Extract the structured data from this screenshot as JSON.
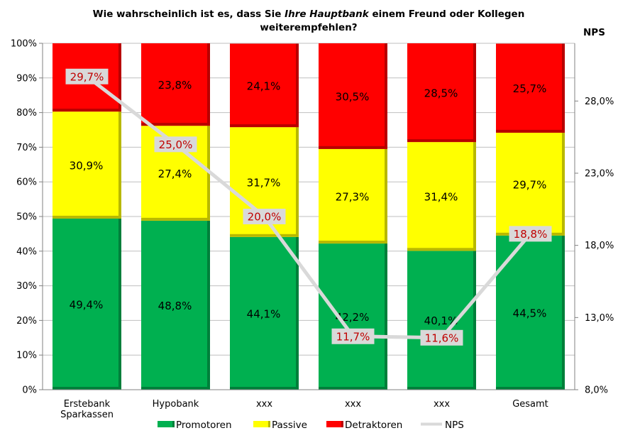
{
  "chart_data": {
    "type": "bar",
    "title_line1_prefix": "Wie wahrscheinlich ist es, dass Sie ",
    "title_line1_italic": "Ihre Hauptbank",
    "title_line1_suffix": " einem Freund oder Kollegen",
    "title_line2": "weiterempfehlen?",
    "right_axis_title": "NPS",
    "categories": [
      [
        "Erstebank",
        "Sparkassen"
      ],
      [
        "Hypobank"
      ],
      [
        "xxx"
      ],
      [
        "xxx"
      ],
      [
        "xxx"
      ],
      [
        "Gesamt"
      ]
    ],
    "y_ticks": [
      "0%",
      "10%",
      "20%",
      "30%",
      "40%",
      "50%",
      "60%",
      "70%",
      "80%",
      "90%",
      "100%"
    ],
    "ylim": [
      0,
      100
    ],
    "y2_ticks": [
      "8,0%",
      "13,0%",
      "18,0%",
      "23,0%",
      "28,0%"
    ],
    "y2lim": [
      8,
      32
    ],
    "series": [
      {
        "name": "Promotoren",
        "color": "#00b050",
        "values": [
          49.4,
          48.8,
          44.1,
          42.2,
          40.1,
          44.5
        ],
        "labels": [
          "49,4%",
          "48,8%",
          "44,1%",
          "42,2%",
          "40,1%",
          "44,5%"
        ]
      },
      {
        "name": "Passive",
        "color": "#ffff00",
        "values": [
          30.9,
          27.4,
          31.7,
          27.3,
          31.4,
          29.7
        ],
        "labels": [
          "30,9%",
          "27,4%",
          "31,7%",
          "27,3%",
          "31,4%",
          "29,7%"
        ]
      },
      {
        "name": "Detraktoren",
        "color": "#ff0000",
        "values": [
          19.7,
          23.8,
          24.1,
          30.5,
          28.5,
          25.7
        ],
        "labels": [
          "19,7%",
          "23,8%",
          "24,1%",
          "30,5%",
          "28,5%",
          "25,7%"
        ]
      }
    ],
    "nps": {
      "name": "NPS",
      "color": "#d9d9d9",
      "values": [
        29.7,
        25.0,
        20.0,
        11.7,
        11.6,
        18.8
      ],
      "labels": [
        "29,7%",
        "25,0%",
        "20,0%",
        "11,7%",
        "11,6%",
        "18,8%"
      ]
    },
    "legend_position": "bottom"
  }
}
